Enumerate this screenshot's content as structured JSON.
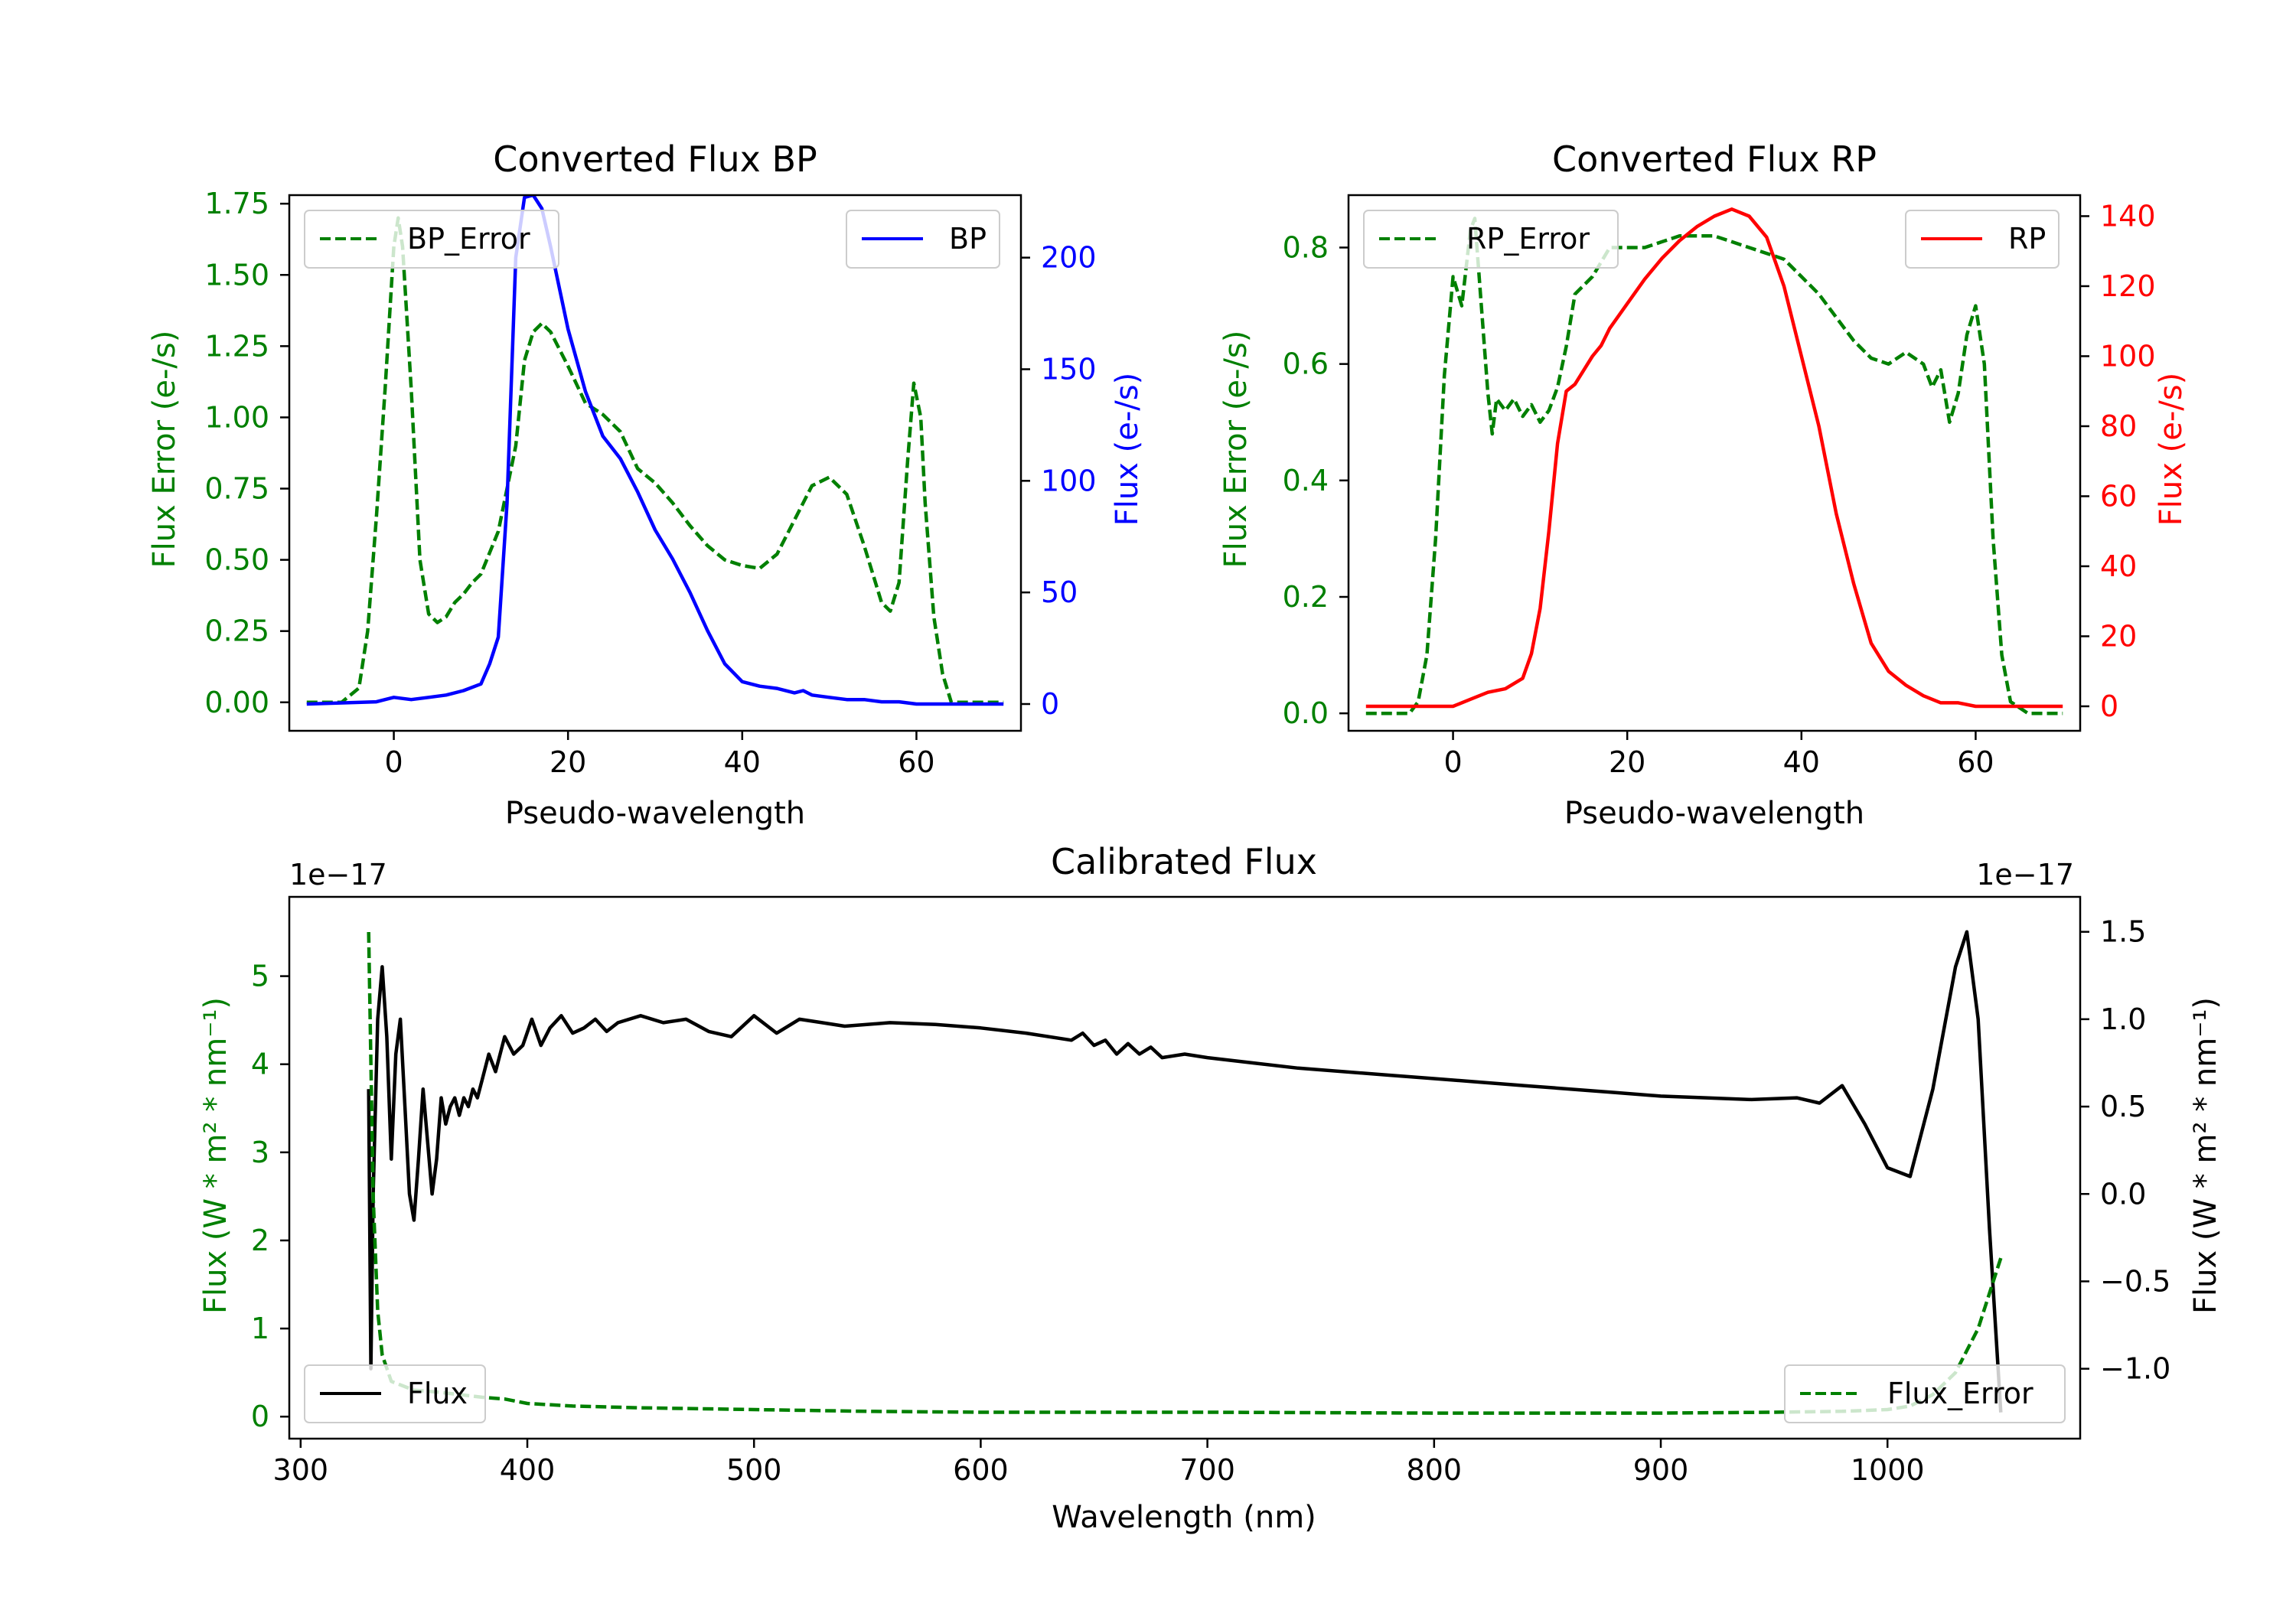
{
  "chart_data": [
    {
      "id": "bp",
      "type": "line",
      "title": "Converted Flux BP",
      "xlabel": "Pseudo-wavelength",
      "ylabel_left": "Flux Error (e-/s)",
      "ylabel_right": "Flux (e-/s)",
      "xlim": [
        -12,
        72
      ],
      "ylim_left": [
        -0.1,
        1.78
      ],
      "ylim_right": [
        -12,
        228
      ],
      "xticks": [
        0,
        20,
        40,
        60
      ],
      "yticks_left": [
        0.0,
        0.25,
        0.5,
        0.75,
        1.0,
        1.25,
        1.5,
        1.75
      ],
      "ytick_labels_left": [
        "0.00",
        "0.25",
        "0.50",
        "0.75",
        "1.00",
        "1.25",
        "1.50",
        "1.75"
      ],
      "yticks_right": [
        0,
        50,
        100,
        150,
        200
      ],
      "series": [
        {
          "name": "BP_Error",
          "axis": "left",
          "color": "#008000",
          "dash": "dashed",
          "legend": "upper left",
          "x": [
            -10,
            -6,
            -4,
            -3,
            -2,
            -1,
            0,
            0.5,
            1,
            2,
            3,
            4,
            5,
            6,
            7,
            8,
            9,
            10,
            12,
            14,
            15,
            16,
            17,
            18,
            20,
            22,
            24,
            26,
            28,
            30,
            32,
            34,
            36,
            38,
            40,
            42,
            44,
            46,
            48,
            50,
            52,
            54,
            56,
            57,
            58,
            59,
            59.7,
            60.5,
            61,
            62,
            63,
            64,
            66,
            68,
            70
          ],
          "y": [
            0.0,
            0.0,
            0.05,
            0.25,
            0.65,
            1.1,
            1.6,
            1.7,
            1.6,
            1.1,
            0.5,
            0.31,
            0.28,
            0.3,
            0.35,
            0.38,
            0.42,
            0.45,
            0.6,
            0.9,
            1.2,
            1.3,
            1.33,
            1.3,
            1.18,
            1.05,
            1.01,
            0.95,
            0.82,
            0.77,
            0.7,
            0.62,
            0.55,
            0.5,
            0.48,
            0.47,
            0.52,
            0.64,
            0.76,
            0.79,
            0.73,
            0.55,
            0.35,
            0.32,
            0.42,
            0.85,
            1.12,
            1.0,
            0.7,
            0.3,
            0.1,
            0.0,
            0.0,
            0.0,
            0.0
          ]
        },
        {
          "name": "BP",
          "axis": "right",
          "color": "#0000ff",
          "dash": "solid",
          "legend": "upper right",
          "x": [
            -10,
            -2,
            0,
            2,
            4,
            6,
            8,
            10,
            11,
            12,
            13,
            14,
            15,
            16,
            17,
            18,
            20,
            22,
            24,
            26,
            28,
            30,
            32,
            34,
            36,
            38,
            40,
            42,
            44,
            46,
            47,
            48,
            50,
            52,
            54,
            56,
            58,
            60,
            62,
            70
          ],
          "y": [
            0,
            1,
            3,
            2,
            3,
            4,
            6,
            9,
            18,
            30,
            90,
            200,
            227,
            228,
            222,
            205,
            168,
            140,
            120,
            110,
            95,
            78,
            65,
            50,
            33,
            18,
            10,
            8,
            7,
            5,
            6,
            4,
            3,
            2,
            2,
            1,
            1,
            0,
            0,
            0
          ]
        }
      ]
    },
    {
      "id": "rp",
      "type": "line",
      "title": "Converted Flux RP",
      "xlabel": "Pseudo-wavelength",
      "ylabel_left": "Flux Error (e-/s)",
      "ylabel_right": "Flux (e-/s)",
      "xlim": [
        -12,
        72
      ],
      "ylim_left": [
        -0.03,
        0.89
      ],
      "ylim_right": [
        -7,
        146
      ],
      "xticks": [
        0,
        20,
        40,
        60
      ],
      "yticks_left": [
        0.0,
        0.2,
        0.4,
        0.6,
        0.8
      ],
      "ytick_labels_left": [
        "0.0",
        "0.2",
        "0.4",
        "0.6",
        "0.8"
      ],
      "yticks_right": [
        0,
        20,
        40,
        60,
        80,
        100,
        120,
        140
      ],
      "series": [
        {
          "name": "RP_Error",
          "axis": "left",
          "color": "#008000",
          "dash": "dashed",
          "legend": "upper left",
          "x": [
            -10,
            -5,
            -4,
            -3,
            -2,
            -1,
            0,
            1,
            2,
            2.5,
            3,
            4,
            4.5,
            5,
            6,
            7,
            8,
            9,
            10,
            11,
            12,
            13,
            14,
            16,
            18,
            20,
            22,
            24,
            26,
            28,
            30,
            32,
            34,
            36,
            38,
            40,
            42,
            44,
            46,
            48,
            50,
            52,
            54,
            55,
            56,
            57,
            58,
            59,
            60,
            61,
            62,
            63,
            64,
            66,
            70
          ],
          "y": [
            0.0,
            0.0,
            0.02,
            0.1,
            0.3,
            0.58,
            0.75,
            0.7,
            0.83,
            0.85,
            0.75,
            0.55,
            0.48,
            0.54,
            0.52,
            0.54,
            0.51,
            0.53,
            0.5,
            0.52,
            0.56,
            0.63,
            0.72,
            0.75,
            0.8,
            0.8,
            0.8,
            0.81,
            0.82,
            0.82,
            0.82,
            0.81,
            0.8,
            0.79,
            0.78,
            0.75,
            0.72,
            0.68,
            0.64,
            0.61,
            0.6,
            0.62,
            0.6,
            0.56,
            0.59,
            0.5,
            0.55,
            0.65,
            0.7,
            0.6,
            0.3,
            0.1,
            0.02,
            0.0,
            0.0
          ]
        },
        {
          "name": "RP",
          "axis": "right",
          "color": "#ff0000",
          "dash": "solid",
          "legend": "upper right",
          "x": [
            -10,
            -3,
            0,
            2,
            4,
            6,
            8,
            9,
            10,
            11,
            12,
            13,
            14,
            15,
            16,
            17,
            18,
            20,
            22,
            24,
            26,
            28,
            30,
            32,
            34,
            36,
            38,
            40,
            42,
            44,
            46,
            48,
            50,
            52,
            54,
            56,
            58,
            60,
            62,
            64,
            70
          ],
          "y": [
            0,
            0,
            0,
            2,
            4,
            5,
            8,
            15,
            28,
            50,
            75,
            90,
            92,
            96,
            100,
            103,
            108,
            115,
            122,
            128,
            133,
            137,
            140,
            142,
            140,
            134,
            120,
            100,
            80,
            55,
            35,
            18,
            10,
            6,
            3,
            1,
            1,
            0,
            0,
            0,
            0
          ]
        }
      ]
    },
    {
      "id": "calibrated",
      "type": "line",
      "title": "Calibrated Flux",
      "xlabel": "Wavelength (nm)",
      "ylabel_left": "Flux (W * m² * nm⁻¹)",
      "ylabel_right": "Flux (W * m² * nm⁻¹)",
      "offset_left": "1e−17",
      "offset_right": "1e−17",
      "xlim": [
        295,
        1085
      ],
      "ylim_left": [
        -0.25,
        5.9
      ],
      "ylim_right": [
        -1.4,
        1.7
      ],
      "xticks": [
        300,
        400,
        500,
        600,
        700,
        800,
        900,
        1000
      ],
      "yticks_left": [
        0,
        1,
        2,
        3,
        4,
        5
      ],
      "ytick_labels_left": [
        "0",
        "1",
        "2",
        "3",
        "4",
        "5"
      ],
      "yticks_right": [
        -1.0,
        -0.5,
        0.0,
        0.5,
        1.0,
        1.5
      ],
      "ytick_labels_right": [
        "−1.0",
        "−0.5",
        "0.0",
        "0.5",
        "1.0",
        "1.5"
      ],
      "series": [
        {
          "name": "Flux",
          "axis": "right",
          "color": "#000000",
          "dash": "solid",
          "legend": "lower left",
          "x": [
            330,
            331,
            332,
            334,
            336,
            338,
            340,
            342,
            344,
            346,
            348,
            350,
            352,
            354,
            356,
            358,
            360,
            362,
            364,
            366,
            368,
            370,
            372,
            374,
            376,
            378,
            380,
            383,
            386,
            390,
            394,
            398,
            402,
            406,
            410,
            415,
            420,
            425,
            430,
            435,
            440,
            450,
            460,
            470,
            480,
            490,
            500,
            510,
            520,
            530,
            540,
            560,
            580,
            600,
            620,
            640,
            645,
            650,
            655,
            660,
            665,
            670,
            675,
            680,
            690,
            700,
            720,
            740,
            760,
            780,
            800,
            820,
            840,
            860,
            880,
            900,
            920,
            940,
            960,
            970,
            980,
            990,
            1000,
            1010,
            1020,
            1030,
            1035,
            1040,
            1045,
            1050
          ],
          "y": [
            0.6,
            -1.0,
            0.0,
            1.0,
            1.3,
            0.9,
            0.2,
            0.8,
            1.0,
            0.5,
            0.0,
            -0.15,
            0.2,
            0.6,
            0.3,
            0.0,
            0.2,
            0.55,
            0.4,
            0.5,
            0.55,
            0.45,
            0.55,
            0.5,
            0.6,
            0.55,
            0.65,
            0.8,
            0.7,
            0.9,
            0.8,
            0.85,
            1.0,
            0.85,
            0.95,
            1.02,
            0.92,
            0.95,
            1.0,
            0.93,
            0.98,
            1.02,
            0.98,
            1.0,
            0.93,
            0.9,
            1.02,
            0.92,
            1.0,
            0.98,
            0.96,
            0.98,
            0.97,
            0.95,
            0.92,
            0.88,
            0.92,
            0.85,
            0.88,
            0.8,
            0.86,
            0.8,
            0.84,
            0.78,
            0.8,
            0.78,
            0.75,
            0.72,
            0.7,
            0.68,
            0.66,
            0.64,
            0.62,
            0.6,
            0.58,
            0.56,
            0.55,
            0.54,
            0.55,
            0.52,
            0.62,
            0.4,
            0.15,
            0.1,
            0.6,
            1.3,
            1.5,
            1.0,
            -0.2,
            -1.25
          ]
        },
        {
          "name": "Flux_Error",
          "axis": "left",
          "color": "#008000",
          "dash": "dashed",
          "legend": "lower right",
          "x": [
            330,
            332,
            334,
            336,
            340,
            345,
            350,
            360,
            370,
            380,
            390,
            400,
            420,
            450,
            500,
            550,
            600,
            650,
            700,
            800,
            900,
            950,
            980,
            1000,
            1010,
            1020,
            1030,
            1040,
            1045,
            1050
          ],
          "y": [
            5.5,
            2.5,
            1.2,
            0.7,
            0.4,
            0.35,
            0.3,
            0.28,
            0.25,
            0.22,
            0.2,
            0.15,
            0.12,
            0.1,
            0.08,
            0.06,
            0.05,
            0.05,
            0.05,
            0.04,
            0.04,
            0.05,
            0.06,
            0.08,
            0.12,
            0.25,
            0.5,
            1.0,
            1.4,
            1.8
          ]
        }
      ]
    }
  ]
}
